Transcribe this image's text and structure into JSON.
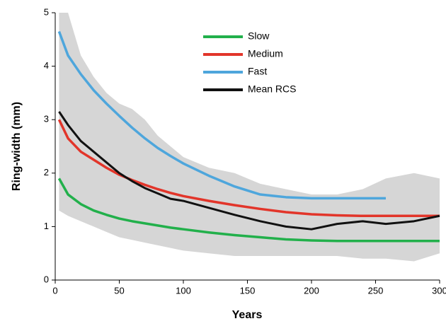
{
  "chart_data": {
    "type": "line",
    "xlabel": "Years",
    "ylabel": "Ring-width (mm)",
    "x": [
      3,
      10,
      20,
      30,
      40,
      50,
      60,
      70,
      80,
      90,
      100,
      120,
      140,
      160,
      180,
      200,
      220,
      240,
      258,
      280,
      300
    ],
    "series": [
      {
        "name": "Slow",
        "color": "#22b04b",
        "values": [
          1.9,
          1.6,
          1.42,
          1.3,
          1.22,
          1.15,
          1.1,
          1.06,
          1.02,
          0.98,
          0.95,
          0.89,
          0.84,
          0.8,
          0.76,
          0.74,
          0.73,
          0.73,
          0.73,
          0.73,
          0.73
        ]
      },
      {
        "name": "Medium",
        "color": "#e2352a",
        "values": [
          3.0,
          2.65,
          2.4,
          2.25,
          2.1,
          1.97,
          1.87,
          1.78,
          1.7,
          1.63,
          1.57,
          1.48,
          1.4,
          1.33,
          1.27,
          1.23,
          1.21,
          1.2,
          1.2,
          1.2,
          1.2
        ]
      },
      {
        "name": "Fast",
        "color": "#4ea6dc",
        "values": [
          4.65,
          4.2,
          3.85,
          3.55,
          3.3,
          3.07,
          2.85,
          2.65,
          2.47,
          2.32,
          2.18,
          1.95,
          1.75,
          1.6,
          1.55,
          1.53,
          1.53,
          1.53,
          1.53,
          null,
          null
        ]
      },
      {
        "name": "Mean RCS",
        "color": "#111111",
        "values": [
          3.15,
          2.9,
          2.6,
          2.4,
          2.2,
          2.0,
          1.85,
          1.72,
          1.62,
          1.52,
          1.48,
          1.35,
          1.22,
          1.1,
          1.0,
          0.95,
          1.05,
          1.1,
          1.05,
          1.1,
          1.2
        ]
      }
    ],
    "band": {
      "color": "#cfcfcf",
      "low": [
        1.3,
        1.2,
        1.1,
        1.0,
        0.9,
        0.8,
        0.75,
        0.7,
        0.65,
        0.6,
        0.55,
        0.5,
        0.45,
        0.45,
        0.45,
        0.45,
        0.45,
        0.4,
        0.4,
        0.35,
        0.5
      ],
      "high": [
        5.0,
        5.0,
        4.2,
        3.8,
        3.5,
        3.3,
        3.2,
        3.0,
        2.7,
        2.5,
        2.3,
        2.1,
        2.0,
        1.8,
        1.7,
        1.6,
        1.6,
        1.7,
        1.9,
        2.0,
        1.9
      ]
    },
    "xlim": [
      0,
      300
    ],
    "ylim": [
      0,
      5
    ],
    "xticks": [
      0,
      50,
      100,
      150,
      200,
      250,
      300
    ],
    "yticks": [
      0,
      1,
      2,
      3,
      4,
      5
    ]
  }
}
